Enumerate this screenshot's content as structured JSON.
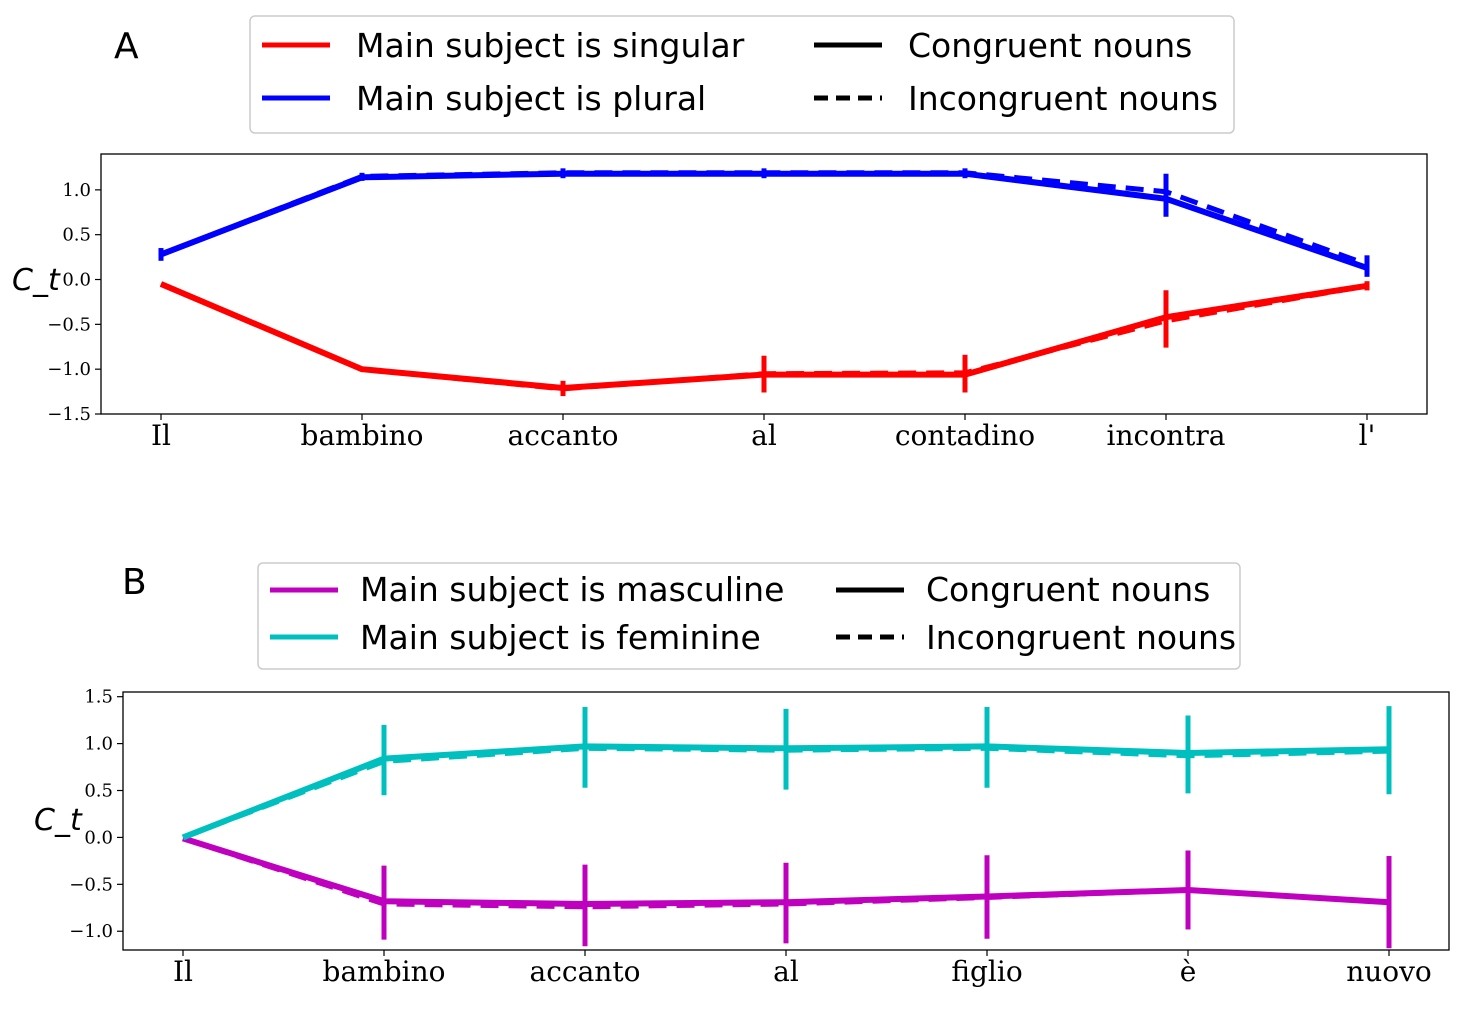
{
  "chart_data": [
    {
      "panel": "A",
      "type": "line",
      "ylabel": "C_t",
      "categories": [
        "Il",
        "bambino",
        "accanto",
        "al",
        "contadino",
        "incontra",
        "l'"
      ],
      "ylim": [
        -1.5,
        1.4
      ],
      "yticks": [
        -1.5,
        -1.0,
        -0.5,
        0.0,
        0.5,
        1.0
      ],
      "ytick_labels": [
        "−1.5",
        "−1.0",
        "−0.5",
        "0.0",
        "0.5",
        "1.0"
      ],
      "grid": false,
      "legend": {
        "placement": "top-center",
        "entries": [
          {
            "label": "Main subject is singular",
            "color": "#ff0000",
            "style": "solid"
          },
          {
            "label": "Congruent nouns",
            "color": "#000000",
            "style": "solid"
          },
          {
            "label": "Main subject is plural",
            "color": "#0000ff",
            "style": "solid"
          },
          {
            "label": "Incongruent nouns",
            "color": "#000000",
            "style": "dashed"
          }
        ]
      },
      "series": [
        {
          "color": "#ff0000",
          "style": "solid",
          "values": [
            -0.05,
            -1.0,
            -1.21,
            -1.06,
            -1.06,
            -0.42,
            -0.07
          ],
          "errors": [
            0.0,
            0.0,
            0.08,
            0.2,
            0.2,
            0.3,
            0.05
          ]
        },
        {
          "color": "#ff0000",
          "style": "dashed",
          "values": [
            -0.05,
            -1.0,
            -1.22,
            -1.05,
            -1.04,
            -0.46,
            -0.07
          ],
          "errors": [
            0.0,
            0.0,
            0.08,
            0.2,
            0.2,
            0.3,
            0.05
          ]
        },
        {
          "color": "#0000ff",
          "style": "solid",
          "values": [
            0.28,
            1.14,
            1.18,
            1.18,
            1.18,
            0.9,
            0.13
          ],
          "errors": [
            0.07,
            0.04,
            0.05,
            0.05,
            0.05,
            0.2,
            0.1
          ]
        },
        {
          "color": "#0000ff",
          "style": "dashed",
          "values": [
            0.28,
            1.15,
            1.19,
            1.19,
            1.19,
            0.98,
            0.17
          ],
          "errors": [
            0.07,
            0.04,
            0.05,
            0.05,
            0.05,
            0.2,
            0.1
          ]
        }
      ]
    },
    {
      "panel": "B",
      "type": "line",
      "ylabel": "C_t",
      "categories": [
        "Il",
        "bambino",
        "accanto",
        "al",
        "figlio",
        "è",
        "nuovo"
      ],
      "ylim": [
        -1.2,
        1.55
      ],
      "yticks": [
        -1.0,
        -0.5,
        0.0,
        0.5,
        1.0,
        1.5
      ],
      "ytick_labels": [
        "−1.0",
        "−0.5",
        "0.0",
        "0.5",
        "1.0",
        "1.5"
      ],
      "grid": false,
      "legend": {
        "placement": "top-center",
        "entries": [
          {
            "label": "Main subject is masculine",
            "color": "#bf00bf",
            "style": "solid"
          },
          {
            "label": "Congruent nouns",
            "color": "#000000",
            "style": "solid"
          },
          {
            "label": "Main subject is feminine",
            "color": "#00bfbf",
            "style": "solid"
          },
          {
            "label": "Incongruent nouns",
            "color": "#000000",
            "style": "dashed"
          }
        ]
      },
      "series": [
        {
          "color": "#bf00bf",
          "style": "solid",
          "values": [
            -0.01,
            -0.68,
            -0.71,
            -0.69,
            -0.63,
            -0.56,
            -0.69
          ],
          "errors": [
            0.0,
            0.38,
            0.42,
            0.42,
            0.44,
            0.42,
            0.49
          ]
        },
        {
          "color": "#bf00bf",
          "style": "dashed",
          "values": [
            -0.01,
            -0.71,
            -0.74,
            -0.71,
            -0.64,
            -0.56,
            -0.69
          ],
          "errors": [
            0.0,
            0.38,
            0.42,
            0.42,
            0.44,
            0.42,
            0.49
          ]
        },
        {
          "color": "#00bfbf",
          "style": "solid",
          "values": [
            0.0,
            0.84,
            0.97,
            0.95,
            0.97,
            0.9,
            0.94
          ],
          "errors": [
            0.0,
            0.36,
            0.42,
            0.42,
            0.42,
            0.4,
            0.46
          ]
        },
        {
          "color": "#00bfbf",
          "style": "dashed",
          "values": [
            0.0,
            0.81,
            0.95,
            0.93,
            0.95,
            0.87,
            0.92
          ],
          "errors": [
            0.0,
            0.36,
            0.42,
            0.42,
            0.42,
            0.4,
            0.46
          ]
        }
      ]
    }
  ]
}
